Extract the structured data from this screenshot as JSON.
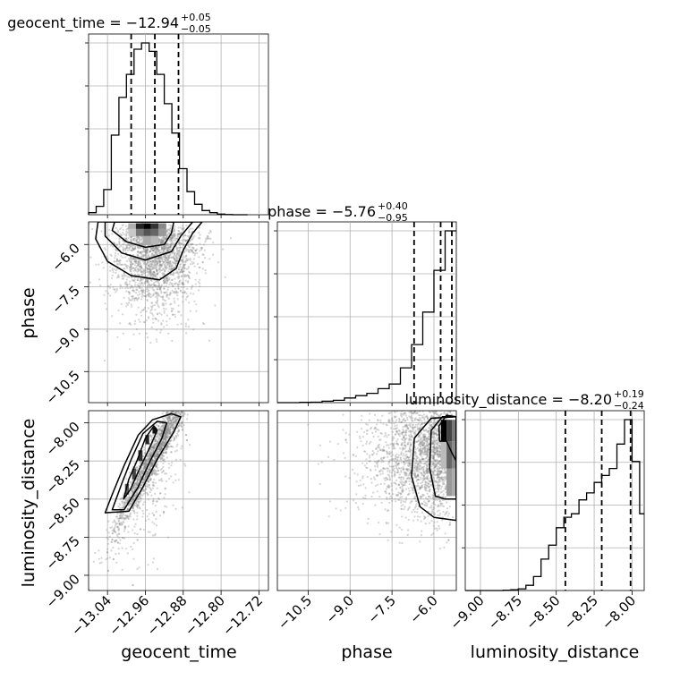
{
  "chart_data": [
    {
      "type": "histogram",
      "panel": "geocent_time",
      "title": {
        "main": "geocent_time = −12.94",
        "sup": "+0.05",
        "sub": "−0.05"
      },
      "x_range": [
        -13.08,
        -12.7
      ],
      "bins": [
        -13.08,
        -13.064,
        -13.048,
        -13.032,
        -13.016,
        -13.0,
        -12.984,
        -12.968,
        -12.952,
        -12.936,
        -12.92,
        -12.904,
        -12.888,
        -12.872,
        -12.856,
        -12.84,
        -12.824,
        -12.808,
        -12.792,
        -12.776,
        -12.76
      ],
      "counts": [
        0.01,
        0.04,
        0.12,
        0.38,
        0.56,
        0.67,
        0.79,
        0.82,
        0.78,
        0.67,
        0.53,
        0.39,
        0.22,
        0.11,
        0.05,
        0.02,
        0.01,
        0.003,
        0.001,
        0.0,
        0.0
      ],
      "quantiles": [
        -12.99,
        -12.94,
        -12.89
      ],
      "grid": true,
      "x_tick_labels": [
        "−13.04",
        "−12.96",
        "−12.88",
        "−12.80",
        "−12.72"
      ]
    },
    {
      "type": "histogram",
      "panel": "phase",
      "title": {
        "main": "phase = −5.76",
        "sup": "+0.40",
        "sub": "−0.95"
      },
      "x_range": [
        -11.6,
        -5.2
      ],
      "bins": [
        -11.6,
        -11.2,
        -10.8,
        -10.4,
        -10.0,
        -9.6,
        -9.2,
        -8.8,
        -8.4,
        -8.0,
        -7.6,
        -7.2,
        -6.8,
        -6.4,
        -6.0,
        -5.6
      ],
      "counts": [
        0.0,
        0.0,
        0.001,
        0.002,
        0.006,
        0.01,
        0.02,
        0.03,
        0.04,
        0.06,
        0.08,
        0.15,
        0.25,
        0.39,
        0.57,
        0.74
      ],
      "quantiles": [
        -6.71,
        -5.76,
        -5.36
      ],
      "grid": true,
      "x_tick_labels": [
        "−10.5",
        "−9.0",
        "−7.5",
        "−6.0"
      ]
    },
    {
      "type": "histogram",
      "panel": "luminosity_distance",
      "title": {
        "main": "luminosity_distance = −8.20",
        "sup": "+0.19",
        "sub": "−0.24"
      },
      "x_range": [
        -9.1,
        -7.92
      ],
      "bins": [
        -9.1,
        -9.05,
        -9.0,
        -8.95,
        -8.9,
        -8.85,
        -8.8,
        -8.75,
        -8.7,
        -8.65,
        -8.6,
        -8.55,
        -8.5,
        -8.45,
        -8.4,
        -8.35,
        -8.3,
        -8.25,
        -8.2,
        -8.15,
        -8.1,
        -8.05,
        -8.0,
        -7.95
      ],
      "counts": [
        0.0,
        0.0,
        0.0,
        0.0,
        0.0,
        0.001,
        0.002,
        0.005,
        0.015,
        0.04,
        0.09,
        0.13,
        0.18,
        0.21,
        0.22,
        0.26,
        0.28,
        0.31,
        0.33,
        0.35,
        0.42,
        0.49,
        0.37,
        0.22
      ],
      "quantiles": [
        -8.44,
        -8.2,
        -8.01
      ],
      "grid": true,
      "x_tick_labels": [
        "−9.00",
        "−8.75",
        "−8.50",
        "−8.25",
        "−8.00"
      ]
    },
    {
      "type": "scatter_contour",
      "panel": "phase vs geocent_time",
      "x": "geocent_time",
      "y": "phase",
      "x_range": [
        -13.08,
        -12.7
      ],
      "y_range": [
        -11.6,
        -5.2
      ],
      "peak": [
        -12.96,
        -5.3
      ],
      "grid": true,
      "y_tick_labels": [
        "−6.0",
        "−7.5",
        "−9.0",
        "−10.5"
      ]
    },
    {
      "type": "scatter_contour",
      "panel": "luminosity_distance vs geocent_time",
      "x": "geocent_time",
      "y": "luminosity_distance",
      "x_range": [
        -13.08,
        -12.7
      ],
      "y_range": [
        -9.1,
        -7.92
      ],
      "peak": [
        -12.95,
        -8.07
      ],
      "grid": true,
      "y_tick_labels": [
        "−8.00",
        "−8.25",
        "−8.50",
        "−8.75",
        "−9.00"
      ]
    },
    {
      "type": "scatter_contour",
      "panel": "luminosity_distance vs phase",
      "x": "phase",
      "y": "luminosity_distance",
      "x_range": [
        -11.6,
        -5.2
      ],
      "y_range": [
        -9.1,
        -7.92
      ],
      "peak": [
        -5.7,
        -8.05
      ],
      "grid": true
    }
  ],
  "axes_labels": {
    "x_geocent": "geocent_time",
    "x_phase": "phase",
    "x_lumdist": "luminosity_distance",
    "y_phase": "phase",
    "y_lumdist": "luminosity_distance"
  },
  "colors": {
    "hist_line": "#000000",
    "scatter_point": "#888888",
    "contour_line": "#000000",
    "grid": "#b0b0b0"
  }
}
